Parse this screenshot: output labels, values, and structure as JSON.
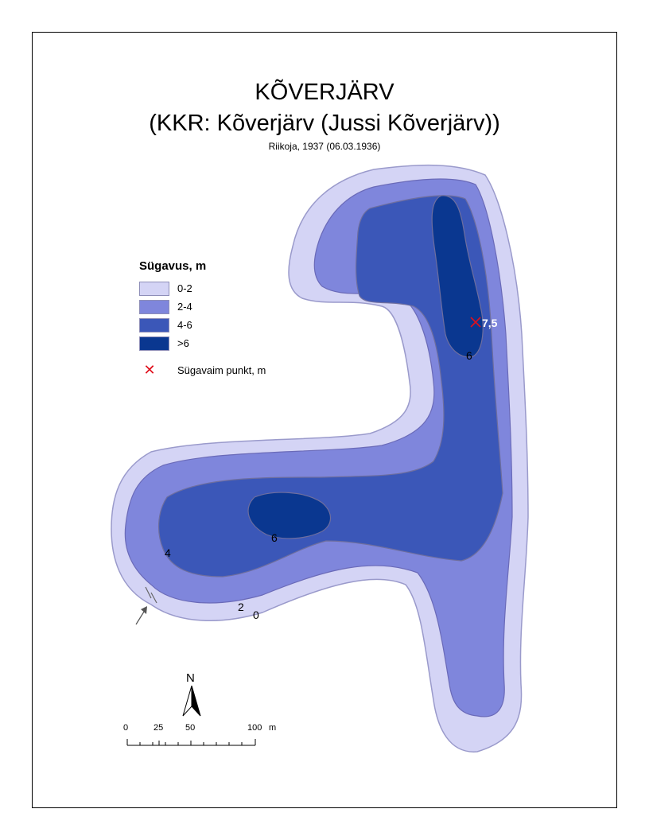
{
  "title": {
    "line1": "KÕVERJÄRV",
    "line2": "(KKR: Kõverjärv (Jussi Kõverjärv))",
    "line3": "Riikoja, 1937 (06.03.1936)"
  },
  "legend": {
    "title": "Sügavus, m",
    "classes": [
      {
        "label": "0-2",
        "color": "#d4d4f5"
      },
      {
        "label": "2-4",
        "color": "#7f86dc"
      },
      {
        "label": "4-6",
        "color": "#3b57b8"
      },
      {
        "label": ">6",
        "color": "#0a3790"
      }
    ],
    "deepest_label": "Sügavaim punkt, m",
    "deepest_color": "#e0101c"
  },
  "map_labels": {
    "deepest_value": "7,5",
    "contour_6_north": "6",
    "contour_6_south": "6",
    "contour_4": "4",
    "contour_2": "2",
    "contour_0": "0"
  },
  "north_arrow": {
    "label": "N"
  },
  "scale_bar": {
    "ticks": [
      "0",
      "25",
      "50",
      "100"
    ],
    "unit": "m"
  }
}
